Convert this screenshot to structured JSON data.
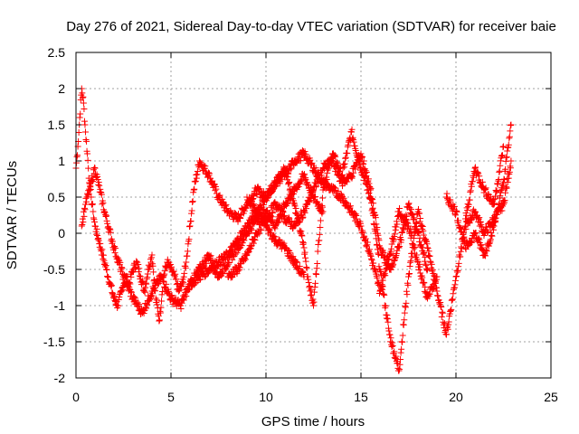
{
  "chart_data": {
    "type": "scatter",
    "title": "Day 276 of 2021, Sidereal Day-to-day VTEC variation (SDTVAR) for receiver baie",
    "xlabel": "GPS time / hours",
    "ylabel": "SDTVAR / TECUs",
    "xlim": [
      0,
      25
    ],
    "ylim": [
      -2,
      2.5
    ],
    "x_ticks": [
      "0",
      "5",
      "10",
      "15",
      "20",
      "25"
    ],
    "y_ticks": [
      "-2",
      "-1.5",
      "-1",
      "-0.5",
      "0",
      "0.5",
      "1",
      "1.5",
      "2",
      "2.5"
    ],
    "grid": true,
    "marker": "+",
    "color": "#ff0000",
    "series": [
      {
        "x": [
          0.0,
          0.1,
          0.2,
          0.3,
          0.4,
          0.5,
          0.6,
          0.7,
          0.8,
          0.9,
          1.0,
          1.2,
          1.4,
          1.6,
          1.8,
          2.0,
          2.2,
          2.4,
          2.6,
          2.8,
          3.0,
          3.2,
          3.4,
          3.6,
          3.8,
          4.0,
          4.2,
          4.4,
          4.6,
          4.8,
          5.0,
          5.2,
          5.4,
          5.6,
          5.8,
          6.0,
          6.2,
          6.5,
          7.0,
          7.5,
          8.0,
          8.5,
          9.0,
          9.5,
          10.0,
          10.5,
          11.0,
          11.5,
          12.0,
          12.2,
          12.5,
          13.0,
          13.5,
          14.0,
          14.5,
          15.0,
          15.5,
          16.0,
          16.5,
          17.0,
          17.5,
          18.0,
          18.5,
          19.0,
          19.5,
          20.0,
          20.5,
          21.0,
          21.5,
          22.0,
          22.5,
          22.9
        ],
        "y": [
          0.9,
          1.2,
          1.6,
          2.0,
          1.8,
          1.4,
          1.1,
          0.7,
          0.5,
          0.3,
          0.1,
          -0.1,
          -0.3,
          -0.5,
          -0.7,
          -0.9,
          -1.0,
          -0.8,
          -0.6,
          -0.7,
          -0.5,
          -0.4,
          -0.6,
          -0.8,
          -0.5,
          -0.3,
          -0.9,
          -1.2,
          -0.6,
          -0.4,
          -0.5,
          -0.6,
          -0.8,
          -0.7,
          -0.4,
          0.1,
          0.6,
          1.0,
          0.8,
          0.5,
          0.3,
          0.2,
          0.4,
          0.6,
          0.5,
          0.7,
          0.9,
          0.4,
          -0.2,
          -0.6,
          -1.0,
          0.6,
          1.1,
          0.8,
          1.4,
          0.9,
          0.5,
          -0.5,
          -1.4,
          -1.9,
          -0.6,
          0.3,
          -0.2,
          -0.8,
          -1.4,
          -0.6,
          0.1,
          0.3,
          0.0,
          0.2,
          0.4,
          1.0
        ]
      },
      {
        "x": [
          0.3,
          0.5,
          0.8,
          1.0,
          1.5,
          2.0,
          2.5,
          3.0,
          3.5,
          4.0,
          4.5,
          5.0,
          5.5,
          6.0,
          6.5,
          7.0,
          7.5,
          8.0,
          8.5,
          9.0,
          9.5,
          10.0,
          10.5,
          11.0,
          11.5,
          12.0,
          12.5,
          13.0
        ],
        "y": [
          0.1,
          0.4,
          0.7,
          0.9,
          0.3,
          -0.2,
          -0.6,
          -0.9,
          -1.1,
          -0.8,
          -0.6,
          -0.9,
          -1.0,
          -0.7,
          -0.5,
          -0.3,
          -0.6,
          -0.4,
          -0.2,
          0.0,
          0.2,
          0.3,
          0.1,
          0.4,
          0.6,
          0.8,
          0.5,
          0.3
        ]
      },
      {
        "x": [
          6.0,
          6.5,
          7.0,
          7.5,
          8.0,
          8.5,
          9.0,
          9.5,
          10.0,
          10.5,
          11.0,
          11.5,
          12.0,
          12.5,
          13.0,
          13.5,
          14.0,
          14.5,
          15.0,
          15.5,
          16.0,
          16.5,
          17.0,
          17.5,
          18.0,
          18.5,
          19.0
        ],
        "y": [
          -0.7,
          -0.6,
          -0.5,
          -0.4,
          -0.3,
          -0.1,
          0.1,
          0.3,
          0.5,
          0.7,
          0.8,
          1.0,
          1.1,
          0.9,
          0.7,
          0.6,
          0.5,
          0.3,
          0.1,
          -0.3,
          -0.8,
          -0.3,
          0.3,
          0.1,
          -0.4,
          -0.9,
          -0.6
        ]
      },
      {
        "x": [
          8.0,
          8.5,
          9.0,
          9.5,
          10.0,
          10.5,
          11.0,
          11.5,
          12.0,
          12.5,
          13.0,
          13.5,
          14.0,
          14.5,
          15.0,
          15.5,
          16.0,
          16.5,
          17.0,
          17.5,
          18.0,
          18.5
        ],
        "y": [
          -0.6,
          -0.5,
          -0.3,
          0.0,
          0.2,
          0.4,
          0.2,
          0.1,
          0.3,
          0.6,
          0.9,
          1.0,
          0.7,
          0.8,
          1.1,
          0.6,
          -0.2,
          -0.5,
          -0.2,
          0.4,
          0.0,
          -0.5
        ]
      },
      {
        "x": [
          9.0,
          9.5,
          10.0,
          10.5,
          11.0,
          11.5,
          12.0
        ],
        "y": [
          0.5,
          0.3,
          0.1,
          -0.1,
          -0.2,
          -0.4,
          -0.6
        ]
      },
      {
        "x": [
          19.5,
          20.0,
          20.5,
          21.0,
          21.5,
          22.0,
          22.5,
          22.9
        ],
        "y": [
          0.5,
          0.3,
          -0.2,
          0.0,
          -0.3,
          0.1,
          0.7,
          1.5
        ]
      },
      {
        "x": [
          20.5,
          21.0,
          21.5,
          22.0,
          22.5
        ],
        "y": [
          0.2,
          0.9,
          0.6,
          0.4,
          1.2
        ]
      }
    ]
  }
}
